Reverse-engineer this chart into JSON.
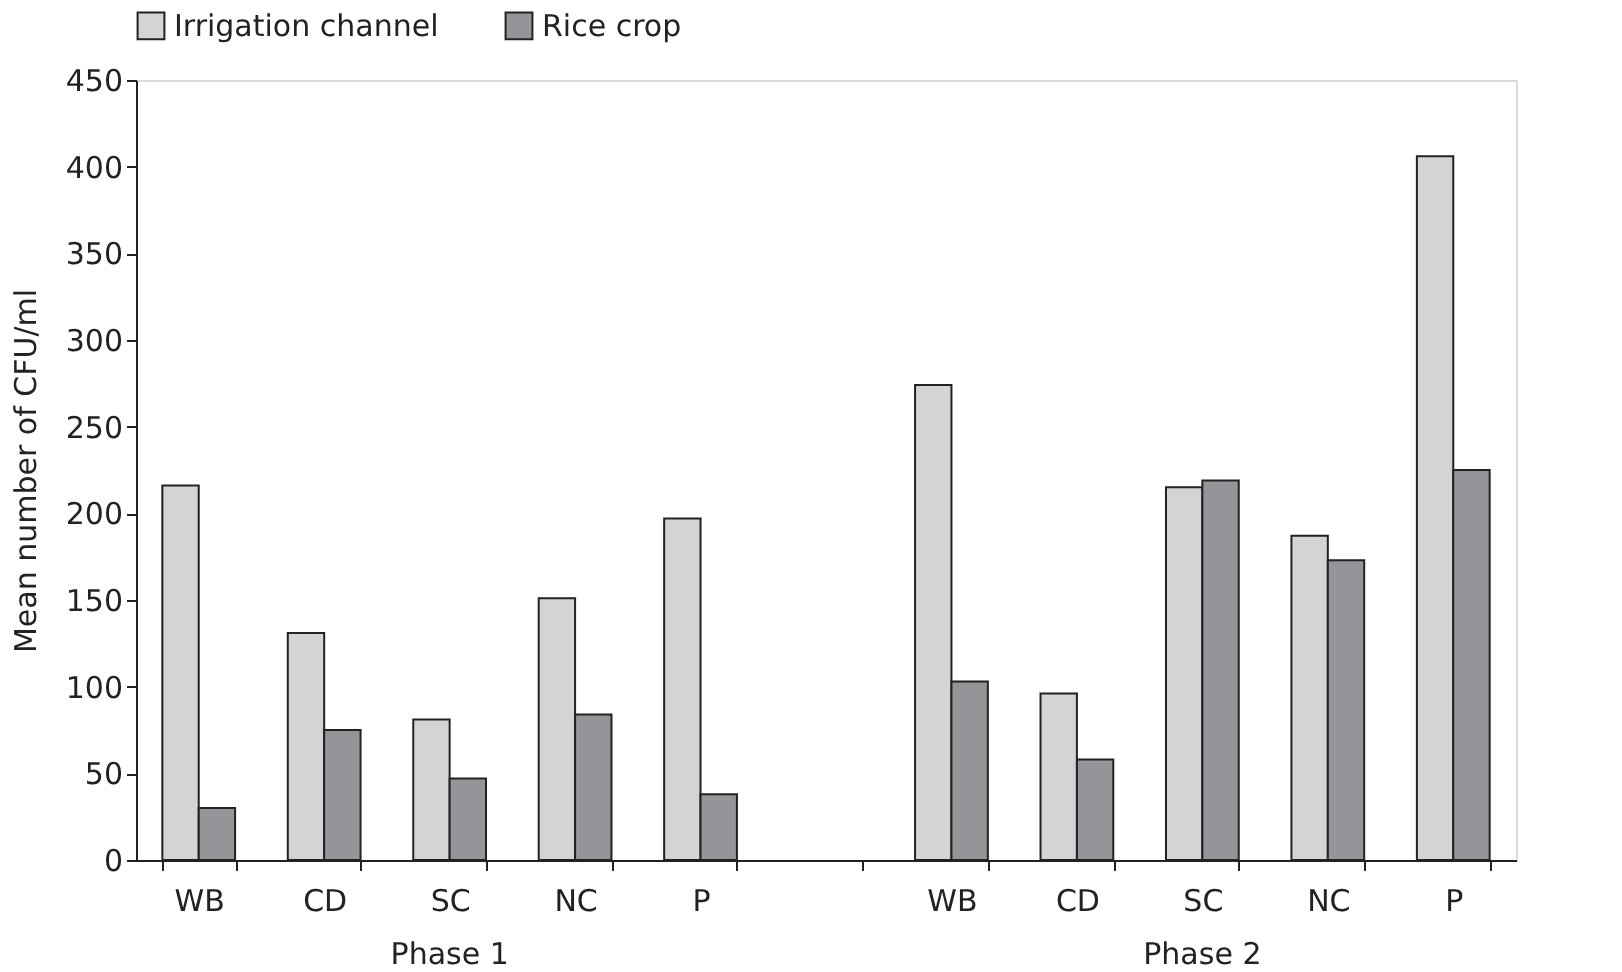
{
  "chart_data": {
    "type": "bar",
    "ylabel": "Mean number of CFU/ml",
    "categories": [
      "WB",
      "CD",
      "SC",
      "NC",
      "P",
      null,
      "WB",
      "CD",
      "SC",
      "NC",
      "P"
    ],
    "series": [
      {
        "name": "Irrigation channel",
        "color": "#d3d4d6",
        "values": [
          216,
          131,
          81,
          151,
          197,
          null,
          274,
          96,
          215,
          187,
          406
        ]
      },
      {
        "name": "Rice crop",
        "color": "#939598",
        "values": [
          30,
          75,
          47,
          84,
          38,
          null,
          103,
          58,
          219,
          173,
          225
        ]
      }
    ],
    "ylim": [
      0,
      450
    ],
    "yticks": [
      0,
      50,
      100,
      150,
      200,
      250,
      300,
      350,
      400,
      450
    ],
    "annotations": [
      "Phase 1",
      "Phase 2"
    ],
    "legend": "top",
    "grid": false
  }
}
